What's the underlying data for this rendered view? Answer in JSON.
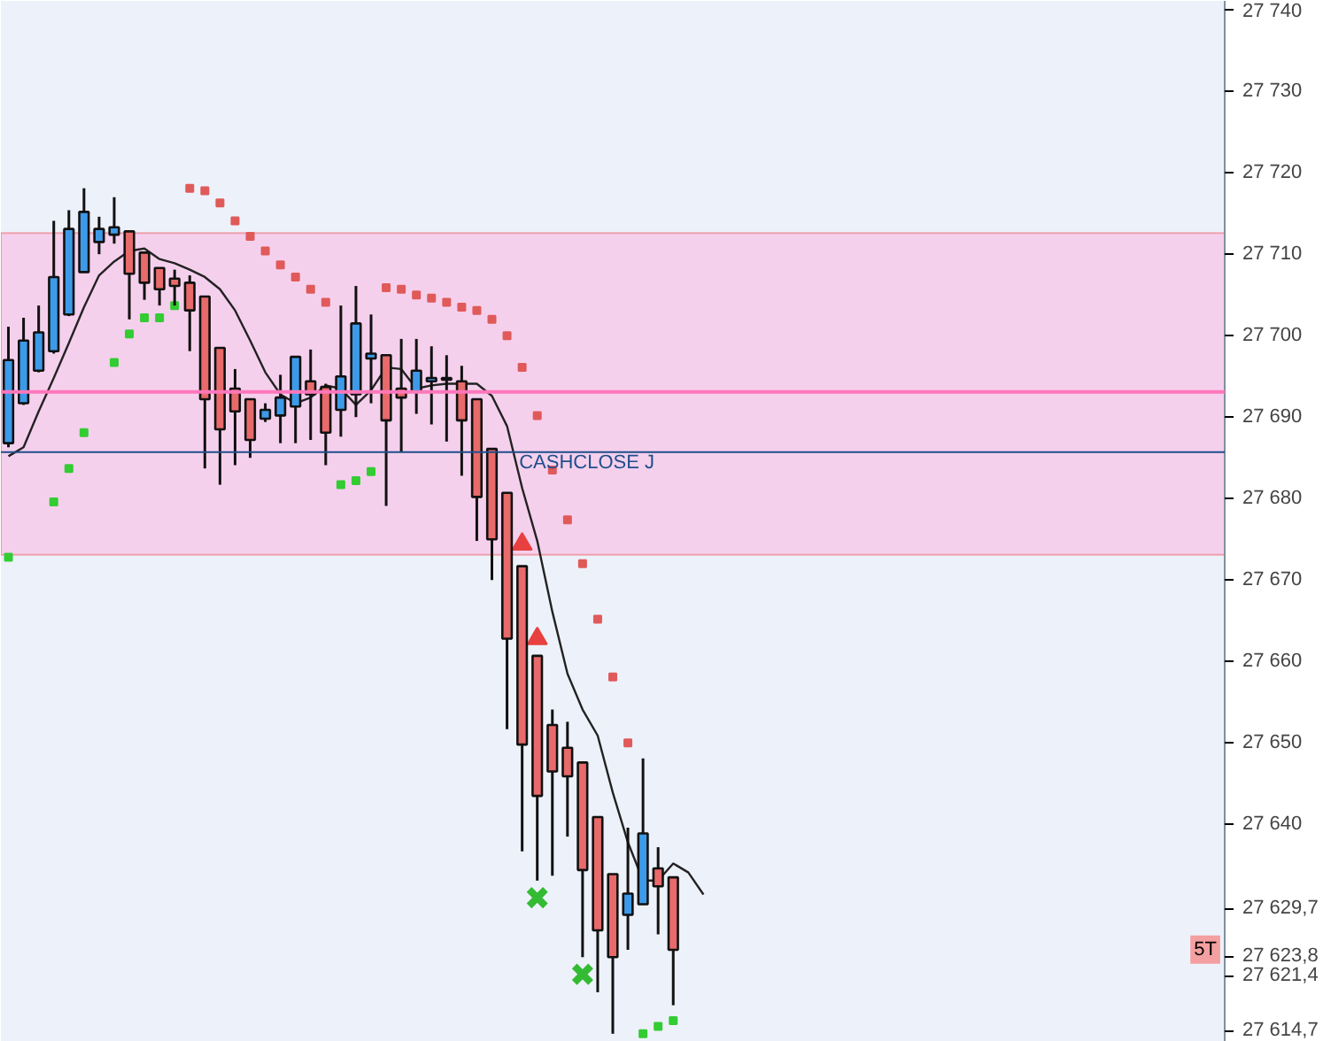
{
  "chart_data": {
    "type": "candlestick",
    "categories": [
      null,
      null,
      null,
      null,
      null,
      null,
      null,
      null,
      null,
      null,
      null,
      null,
      null,
      null,
      null,
      null,
      null,
      null,
      null,
      null,
      null,
      null,
      null,
      null,
      null,
      null,
      null,
      null,
      null,
      null,
      null,
      null,
      null,
      null,
      null,
      null,
      null,
      null,
      null,
      null,
      null,
      null,
      null,
      null,
      null,
      null,
      null,
      null,
      null,
      null,
      null,
      null,
      null,
      null,
      null,
      null,
      null,
      null,
      null,
      null,
      null,
      null,
      null,
      null,
      null,
      null,
      null,
      null,
      null,
      null,
      null,
      null,
      null,
      null,
      null,
      null,
      null,
      null,
      null,
      null,
      null
    ],
    "ohlc": [
      [
        27686.8,
        27701.1,
        27686.3,
        27697.0
      ],
      [
        27691.7,
        27702.2,
        27691.5,
        27699.4
      ],
      [
        27695.7,
        27703.7,
        27695.5,
        27700.4
      ],
      [
        27698.1,
        27714.1,
        27697.8,
        27707.2
      ],
      [
        27702.6,
        27715.4,
        27702.4,
        27713.1
      ],
      [
        27707.8,
        27718.1,
        27707.8,
        27715.2
      ],
      [
        27711.5,
        27714.6,
        27710.0,
        27713.1
      ],
      [
        27712.4,
        27717.0,
        27711.3,
        27713.3
      ],
      [
        27712.8,
        27712.8,
        27702.0,
        27707.6
      ],
      [
        27710.2,
        27710.2,
        27704.4,
        27706.5
      ],
      [
        27708.3,
        27708.3,
        27703.7,
        27705.7
      ],
      [
        27707.0,
        27708.1,
        27703.7,
        27706.1
      ],
      [
        27706.5,
        27707.4,
        27698.1,
        27703.1
      ],
      [
        27704.8,
        27704.8,
        27683.7,
        27692.2
      ],
      [
        27698.5,
        27698.5,
        27681.7,
        27688.5
      ],
      [
        27693.5,
        27695.9,
        27684.1,
        27690.7
      ],
      [
        27692.2,
        27692.2,
        27685.0,
        27687.2
      ],
      [
        27689.8,
        27691.7,
        27689.4,
        27690.9
      ],
      [
        27690.2,
        27695.2,
        27686.8,
        27692.4
      ],
      [
        27691.3,
        27697.4,
        27686.8,
        27697.4
      ],
      [
        27694.4,
        27698.3,
        27687.2,
        27692.8
      ],
      [
        27693.7,
        27694.1,
        27684.1,
        27688.1
      ],
      [
        27690.9,
        27703.7,
        27687.6,
        27695.0
      ],
      [
        27692.8,
        27706.1,
        27690.0,
        27701.5
      ],
      [
        27697.2,
        27702.6,
        27691.7,
        27697.8
      ],
      [
        27697.6,
        27697.6,
        27679.1,
        27689.6
      ],
      [
        27693.5,
        27699.6,
        27685.7,
        27692.4
      ],
      [
        27693.1,
        27699.6,
        27690.4,
        27695.7
      ],
      [
        27694.4,
        27698.7,
        27689.1,
        27694.8
      ],
      [
        27694.8,
        27697.6,
        27687.0,
        27694.6
      ],
      [
        27694.4,
        27696.3,
        27682.8,
        27689.6
      ],
      [
        27692.2,
        27692.2,
        27674.8,
        27680.2
      ],
      [
        27686.1,
        27686.1,
        27670.0,
        27675.0
      ],
      [
        27680.7,
        27680.7,
        27651.7,
        27662.8
      ],
      [
        27671.7,
        27671.7,
        27636.7,
        27649.8
      ],
      [
        27660.7,
        27660.7,
        27633.1,
        27643.5
      ],
      [
        27652.2,
        27654.1,
        27633.7,
        27646.5
      ],
      [
        27649.4,
        27652.6,
        27638.5,
        27645.9
      ],
      [
        27647.6,
        27647.6,
        27623.7,
        27634.4
      ],
      [
        27640.9,
        27640.9,
        27619.4,
        27627.0
      ],
      [
        27633.9,
        27633.9,
        27614.3,
        27623.7
      ],
      [
        27628.9,
        27639.6,
        27624.6,
        27631.5
      ],
      [
        27630.2,
        27648.1,
        27630.2,
        27638.9
      ],
      [
        27634.6,
        27637.2,
        27626.5,
        27632.4
      ],
      [
        27633.5,
        27633.5,
        27617.8,
        27624.6
      ],
      null,
      null,
      null,
      null,
      null,
      null,
      null,
      null,
      null,
      null,
      null,
      null,
      null,
      null,
      null,
      null,
      null,
      null,
      null,
      null,
      null,
      null,
      null,
      null,
      null,
      null,
      null,
      null,
      null,
      null,
      null,
      null,
      null,
      null,
      null,
      null
    ],
    "colors": [
      "#3d9ae8",
      "#3d9ae8",
      "#3d9ae8",
      "#3d9ae8",
      "#3d9ae8",
      "#3d9ae8",
      "#3d9ae8",
      "#3d9ae8",
      "#e86a6a",
      "#e86a6a",
      "#e86a6a",
      "#e86a6a",
      "#e86a6a",
      "#e86a6a",
      "#e86a6a",
      "#e86a6a",
      "#e86a6a",
      "#3d9ae8",
      "#3d9ae8",
      "#3d9ae8",
      "#e86a6a",
      "#e86a6a",
      "#3d9ae8",
      "#3d9ae8",
      "#3d9ae8",
      "#e86a6a",
      "#e86a6a",
      "#3d9ae8",
      "#3d9ae8",
      "#e86a6a",
      "#e86a6a",
      "#e86a6a",
      "#e86a6a",
      "#e86a6a",
      "#e86a6a",
      "#e86a6a",
      "#e86a6a",
      "#e86a6a",
      "#e86a6a",
      "#e86a6a",
      "#e86a6a",
      "#3d9ae8",
      "#3d9ae8",
      "#e86a6a",
      "#e86a6a",
      null,
      null,
      null,
      null,
      null,
      null,
      null,
      null,
      null,
      null,
      null,
      null,
      null,
      null,
      null,
      null,
      null,
      null,
      null,
      null,
      null,
      null,
      null,
      null,
      null,
      null,
      null,
      null,
      null,
      null,
      null,
      null,
      null,
      null,
      null,
      null
    ],
    "series": [
      {
        "type": "line",
        "color": "#222222",
        "values": [
          27685.2,
          27686.3,
          27690.7,
          27694.8,
          27699.1,
          27703.5,
          27707.4,
          27709.1,
          27710.4,
          27710.7,
          27709.4,
          27708.9,
          27708.1,
          27707.2,
          27705.7,
          27703.1,
          27699.4,
          27695.5,
          27692.8,
          27691.7,
          27692.4,
          27693.9,
          27693.5,
          27691.5,
          27693.3,
          27696.1,
          27695.9,
          27693.5,
          27693.9,
          27694.1,
          27694.1,
          27694.1,
          27692.6,
          27688.9,
          27681.3,
          27674.8,
          27666.1,
          27658.5,
          27654.1,
          27650.9,
          27643.9,
          27637.8,
          27633.1,
          27633.1,
          27635.2,
          27634.1,
          27631.4,
          null,
          null,
          null,
          null,
          null,
          null,
          null,
          null,
          null,
          null,
          null,
          null,
          null,
          null,
          null,
          null,
          null,
          null,
          null,
          null,
          null,
          null,
          null,
          null,
          null,
          null,
          null,
          null,
          null,
          null,
          null,
          null,
          null,
          null
        ]
      },
      {
        "type": "scatter",
        "marker": "square",
        "color": "#e05a5a",
        "values": [
          null,
          null,
          null,
          null,
          null,
          null,
          null,
          null,
          null,
          null,
          null,
          null,
          27718.1,
          27717.8,
          27716.3,
          27714.1,
          27712.2,
          27710.4,
          27708.7,
          27707.2,
          27705.7,
          27704.1,
          null,
          null,
          null,
          27705.9,
          27705.7,
          27705.0,
          27704.6,
          27704.1,
          27703.5,
          27703.1,
          27702.0,
          27700.0,
          27696.1,
          27690.2,
          27683.5,
          27677.4,
          27672.0,
          27665.2,
          27658.1,
          27650.0,
          null,
          null,
          null,
          null,
          null,
          null,
          null,
          null,
          null,
          null,
          null,
          null,
          null,
          null,
          null,
          null,
          null,
          null,
          null,
          null,
          null,
          null,
          null,
          null,
          null,
          null,
          null,
          null,
          null,
          null,
          null,
          null,
          null,
          null,
          null,
          null,
          null,
          null,
          null
        ]
      },
      {
        "type": "scatter",
        "marker": "square",
        "color": "#33cc33",
        "values": [
          27672.8,
          null,
          null,
          27679.6,
          27683.7,
          27688.1,
          null,
          27696.7,
          27700.2,
          27702.2,
          27702.2,
          27703.7,
          null,
          null,
          null,
          null,
          null,
          null,
          null,
          null,
          null,
          null,
          27681.7,
          27682.2,
          27683.3,
          null,
          null,
          null,
          null,
          null,
          null,
          null,
          null,
          null,
          null,
          null,
          null,
          null,
          null,
          null,
          null,
          null,
          27614.3,
          27615.2,
          27615.9,
          null,
          null,
          null,
          null,
          null,
          null,
          null,
          null,
          null,
          null,
          null,
          null,
          null,
          null,
          null,
          null,
          null,
          null,
          null,
          null,
          null,
          null,
          null,
          null,
          null,
          null,
          null,
          null,
          null,
          null,
          null,
          null,
          null,
          null,
          null,
          null
        ]
      },
      {
        "type": "scatter",
        "marker": "triangle",
        "color": "#e84040",
        "values": [
          null,
          null,
          null,
          null,
          null,
          null,
          null,
          null,
          null,
          null,
          null,
          null,
          null,
          null,
          null,
          null,
          null,
          null,
          null,
          null,
          null,
          null,
          null,
          null,
          null,
          null,
          null,
          null,
          null,
          null,
          null,
          null,
          null,
          null,
          27674.4,
          27662.8,
          null,
          null,
          null,
          null,
          null,
          null,
          null,
          null,
          null,
          null,
          null,
          null,
          null,
          null,
          null,
          null,
          null,
          null,
          null,
          null,
          null,
          null,
          null,
          null,
          null,
          null,
          null,
          null,
          null,
          null,
          null,
          null,
          null,
          null,
          null,
          null,
          null,
          null,
          null,
          null,
          null,
          null,
          null,
          null,
          null
        ]
      },
      {
        "type": "scatter",
        "marker": "cross",
        "color": "#33bb33",
        "values": [
          null,
          null,
          null,
          null,
          null,
          null,
          null,
          null,
          null,
          null,
          null,
          null,
          null,
          null,
          null,
          null,
          null,
          null,
          null,
          null,
          null,
          null,
          null,
          null,
          null,
          null,
          null,
          null,
          null,
          null,
          null,
          null,
          null,
          null,
          null,
          27631.0,
          null,
          null,
          27621.6,
          null,
          null,
          null,
          null,
          null,
          null,
          null,
          null,
          null,
          null,
          null,
          null,
          null,
          null,
          null,
          null,
          null,
          null,
          null,
          null,
          null,
          null,
          null,
          null,
          null,
          null,
          null,
          null,
          null,
          null,
          null,
          null,
          null,
          null,
          null,
          null,
          null,
          null,
          null,
          null,
          null,
          null
        ]
      }
    ],
    "bands": [
      {
        "axis": "y",
        "from": 27673.1,
        "to": 27712.6,
        "color": "#f5d0ec"
      }
    ],
    "ref_lines": [
      {
        "axis": "y",
        "value": 27693.1,
        "color": "#ff77bb"
      },
      {
        "axis": "y",
        "value": 27685.7,
        "color": "#1f4e8c",
        "label": "CASHCLOSE J"
      }
    ],
    "ylim": [
      27613.3,
      27741.1
    ],
    "annotations": [
      "5T"
    ],
    "yticks": [
      {
        "value": 27614.7,
        "label": "27 614,7"
      },
      {
        "value": 27621.4,
        "label": "27 621,4"
      },
      {
        "value": 27623.8,
        "label": "27 623,8"
      },
      {
        "value": 27629.7,
        "label": "27 629,7"
      },
      {
        "value": 27640,
        "label": "27 640"
      },
      {
        "value": 27650,
        "label": "27 650"
      },
      {
        "value": 27660,
        "label": "27 660"
      },
      {
        "value": 27670,
        "label": "27 670"
      },
      {
        "value": 27680,
        "label": "27 680"
      },
      {
        "value": 27690,
        "label": "27 690"
      },
      {
        "value": 27700,
        "label": "27 700"
      },
      {
        "value": 27710,
        "label": "27 710"
      },
      {
        "value": 27720,
        "label": "27 720"
      },
      {
        "value": 27730,
        "label": "27 730"
      },
      {
        "value": 27740,
        "label": "27 740"
      }
    ],
    "tick_labels": "y",
    "grid": false
  }
}
